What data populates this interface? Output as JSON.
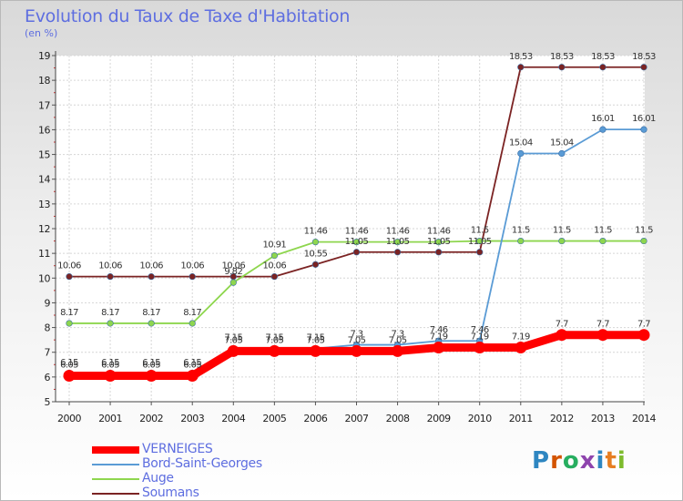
{
  "chart_data": {
    "type": "line",
    "title": "Evolution du Taux de Taxe d'Habitation",
    "unit_label": "(en %)",
    "x": [
      "2000",
      "2001",
      "2002",
      "2003",
      "2004",
      "2005",
      "2006",
      "2007",
      "2008",
      "2009",
      "2010",
      "2011",
      "2012",
      "2013",
      "2014"
    ],
    "ylim": [
      5,
      19
    ],
    "yticks": [
      5,
      6,
      7,
      8,
      9,
      10,
      11,
      12,
      13,
      14,
      15,
      16,
      17,
      18,
      19
    ],
    "grid": true,
    "legend_position": "bottom-left",
    "series": [
      {
        "name": "VERNEIGES",
        "color": "#ff0000",
        "values": [
          6.05,
          6.05,
          6.05,
          6.05,
          7.05,
          7.05,
          7.05,
          7.05,
          7.05,
          7.19,
          7.19,
          7.19,
          7.7,
          7.7,
          7.7
        ],
        "labels": [
          "6.05",
          "6.05",
          "6.05",
          "6.05",
          "7.05",
          "7.05",
          "7.05",
          "7.05",
          "7.05",
          "7.19",
          "7.19",
          "7.19",
          "7.7",
          "7.7",
          "7.7"
        ]
      },
      {
        "name": "Bord-Saint-Georges",
        "color": "#5a9bd5",
        "values": [
          6.15,
          6.15,
          6.15,
          6.15,
          7.15,
          7.15,
          7.15,
          7.3,
          7.3,
          7.46,
          7.46,
          15.04,
          15.04,
          16.01,
          16.01
        ],
        "labels": [
          "6.15",
          "6.15",
          "6.15",
          "6.15",
          "7.15",
          "7.15",
          "7.15",
          "7.3",
          "7.3",
          "7.46",
          "7.46",
          "15.04",
          "15.04",
          "16.01",
          "16.01"
        ]
      },
      {
        "name": "Auge",
        "color": "#8ed64e",
        "values": [
          8.17,
          8.17,
          8.17,
          8.17,
          9.82,
          10.91,
          11.46,
          11.46,
          11.46,
          11.46,
          11.5,
          11.5,
          11.5,
          11.5,
          11.5
        ],
        "labels": [
          "8.17",
          "8.17",
          "8.17",
          "8.17",
          "9.82",
          "10.91",
          "11.46",
          "11.46",
          "11.46",
          "11.46",
          "11.5",
          "11.5",
          "11.5",
          "11.5",
          "11.5"
        ]
      },
      {
        "name": "Soumans",
        "color": "#7b2323",
        "values": [
          10.06,
          10.06,
          10.06,
          10.06,
          10.06,
          10.06,
          10.55,
          11.05,
          11.05,
          11.05,
          11.05,
          18.53,
          18.53,
          18.53,
          18.53
        ],
        "labels": [
          "10.06",
          "10.06",
          "10.06",
          "10.06",
          "10.06",
          "10.06",
          "10.55",
          "11.05",
          "11.05",
          "11.05",
          "11.05",
          "18.53",
          "18.53",
          "18.53",
          "18.53"
        ]
      }
    ]
  },
  "logo": {
    "letters": [
      {
        "ch": "P",
        "color": "#2e86c1"
      },
      {
        "ch": "r",
        "color": "#d35400"
      },
      {
        "ch": "o",
        "color": "#27ae60"
      },
      {
        "ch": "x",
        "color": "#8e44ad"
      },
      {
        "ch": "i",
        "color": "#2e86c1"
      },
      {
        "ch": "t",
        "color": "#e67e22"
      },
      {
        "ch": "i",
        "color": "#7dbb2d"
      }
    ]
  }
}
